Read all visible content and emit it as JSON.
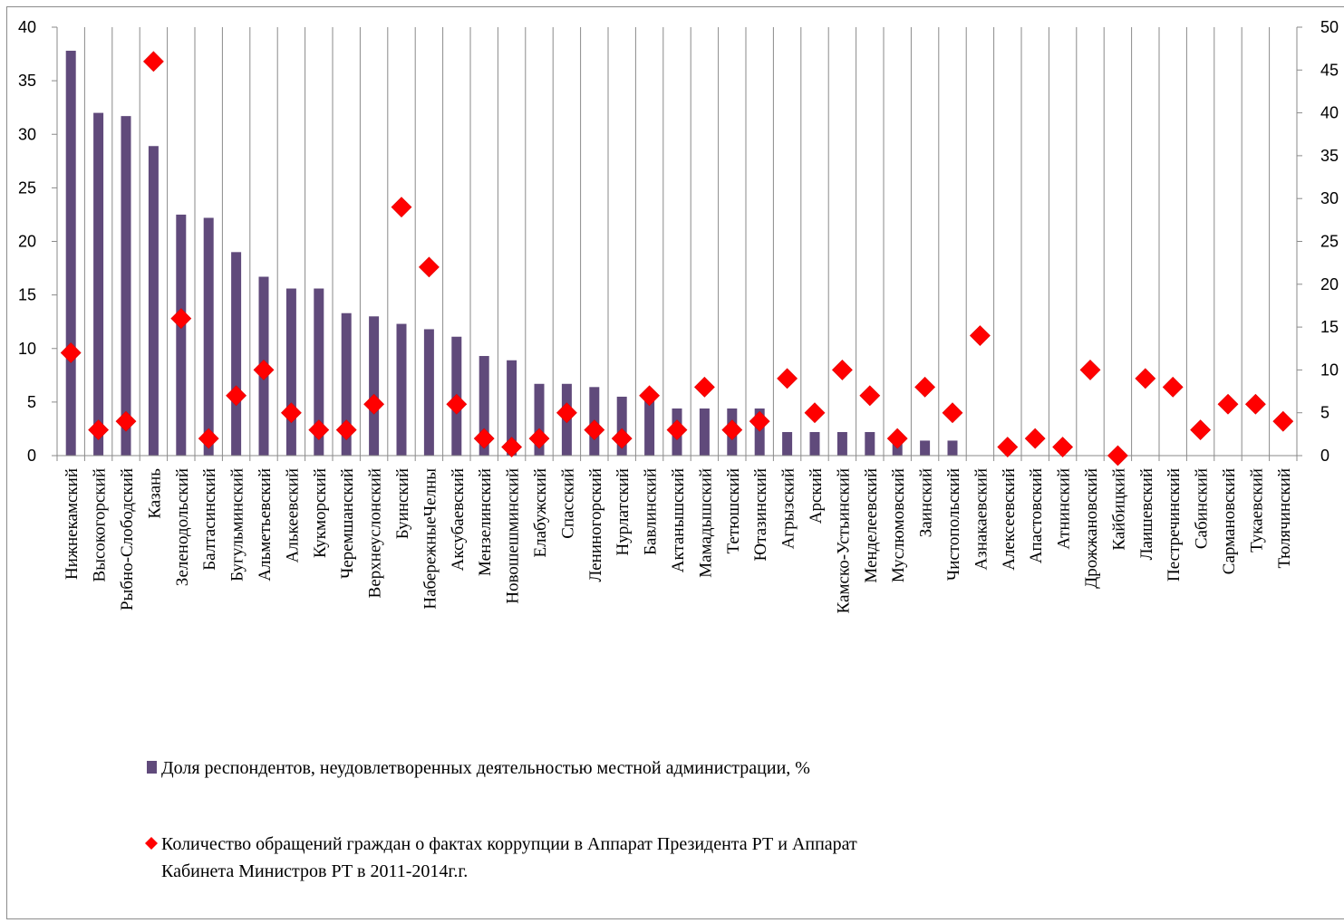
{
  "chart_data": {
    "type": "bar",
    "categories": [
      "Нижнекамский",
      "Высокогорский",
      "Рыбно-Слободский",
      "Казань",
      "Зеленодольский",
      "Балтасинский",
      "Бугульминский",
      "Альметьевский",
      "Алькеевский",
      "Кукморский",
      "Черемшанский",
      "Верхнеуслонский",
      "Буинский",
      "НабережныеЧелны",
      "Аксубаевский",
      "Мензелинский",
      "Новошешминский",
      "Елабужский",
      "Спасский",
      "Лениногорский",
      "Нурлатский",
      "Бавлинский",
      "Актанышский",
      "Мамадышский",
      "Тетюшский",
      "Ютазинский",
      "Агрызский",
      "Арский",
      "Камско-Устьинский",
      "Менделеевский",
      "Муслюмовский",
      "Заинский",
      "Чистопольский",
      "Азнакаевский",
      "Алексеевский",
      "Апастовский",
      "Атнинский",
      "Дрожжановский",
      "Кайбицкий",
      "Лаишевский",
      "Пестречинский",
      "Сабинский",
      "Сармановский",
      "Тукаевский",
      "Тюлячинский"
    ],
    "series": [
      {
        "name": "Доля респондентов, неудовлетворенных деятельностью местной администрации,  %",
        "type": "bar",
        "axis": "left",
        "color": "#604a7b",
        "values": [
          37.8,
          32,
          31.7,
          28.9,
          22.5,
          22.2,
          19,
          16.7,
          15.6,
          15.6,
          13.3,
          13,
          12.3,
          11.8,
          11.1,
          9.3,
          8.9,
          6.7,
          6.7,
          6.4,
          5.5,
          5.1,
          4.4,
          4.4,
          4.4,
          4.4,
          2.2,
          2.2,
          2.2,
          2.2,
          1.5,
          1.4,
          1.4,
          0,
          0,
          0,
          0,
          0,
          0,
          0,
          0,
          0,
          0,
          0,
          0
        ]
      },
      {
        "name": "Количество обращений граждан о фактах коррупции в Аппарат Президента РТ и Аппарат Кабинета Министров РТ в 2011-2014г.г.",
        "type": "scatter",
        "marker": "diamond",
        "axis": "right",
        "color": "#ff0000",
        "values": [
          12,
          3,
          4,
          46,
          16,
          2,
          7,
          10,
          5,
          3,
          3,
          6,
          29,
          22,
          6,
          2,
          1,
          2,
          5,
          3,
          2,
          7,
          3,
          8,
          3,
          4,
          9,
          5,
          10,
          7,
          2,
          8,
          5,
          14,
          1,
          2,
          1,
          10,
          0,
          9,
          8,
          3,
          6,
          6,
          4
        ]
      }
    ],
    "ylim": [
      0,
      40
    ],
    "yticks": [
      "0",
      "5",
      "10",
      "15",
      "20",
      "25",
      "30",
      "35",
      "40"
    ],
    "y2lim": [
      0,
      50
    ],
    "y2ticks": [
      "0",
      "5",
      "10",
      "15",
      "20",
      "25",
      "30",
      "35",
      "40",
      "45",
      "50"
    ],
    "grid": "vertical",
    "legend_position": "bottom",
    "legend": {
      "item1": "Доля респондентов, неудовлетворенных деятельностью местной администрации,  %",
      "item2_line1": "Количество обращений граждан о фактах коррупции в Аппарат Президента РТ и Аппарат",
      "item2_line2": "Кабинета Министров РТ в 2011-2014г.г."
    }
  }
}
